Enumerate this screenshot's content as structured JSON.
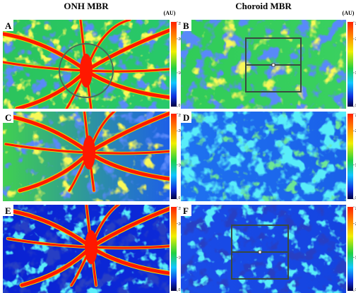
{
  "header": {
    "left_title": "ONH MBR",
    "left_unit": "(AU)",
    "right_title": "Choroid MBR",
    "right_unit": "(AU)"
  },
  "panels": [
    {
      "label": "A"
    },
    {
      "label": "B"
    },
    {
      "label": "C"
    },
    {
      "label": "D"
    },
    {
      "label": "E"
    },
    {
      "label": "F"
    }
  ],
  "colorbar": {
    "range": [
      0,
      25
    ],
    "ticks": [
      25,
      20,
      10,
      0
    ]
  }
}
